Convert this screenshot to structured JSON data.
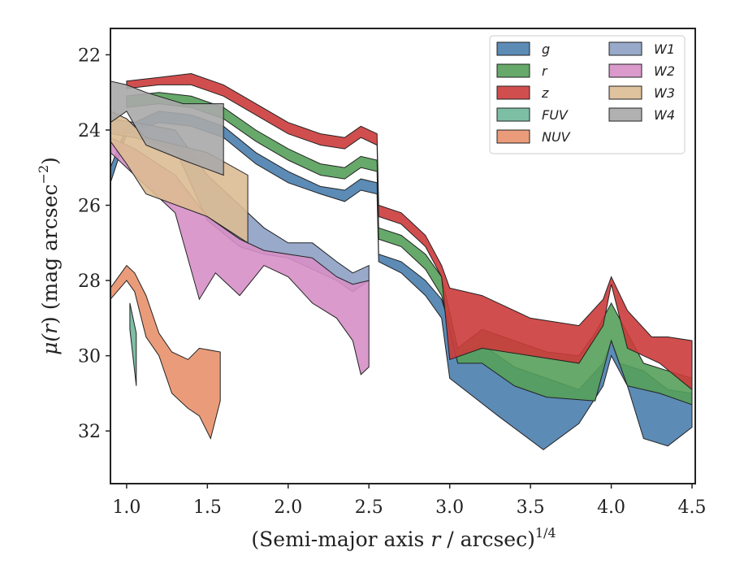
{
  "chart_data": {
    "type": "area",
    "xlabel_main": "(Semi-major axis ",
    "xlabel_var": "r",
    "xlabel_tail": " / arcsec)",
    "xlabel_exp": "1/4",
    "ylabel_main": "μ(",
    "ylabel_var": "r",
    "ylabel_tail": ") (mag arcsec",
    "ylabel_exp": "−2",
    "ylabel_close": ")",
    "xlim": [
      0.9,
      4.52
    ],
    "ylim": [
      33.4,
      21.3
    ],
    "x_ticks": [
      1.0,
      1.5,
      2.0,
      2.5,
      3.0,
      3.5,
      4.0,
      4.5
    ],
    "x_tick_labels": [
      "1.0",
      "1.5",
      "2.0",
      "2.5",
      "3.0",
      "3.5",
      "4.0",
      "4.5"
    ],
    "y_ticks": [
      22,
      24,
      26,
      28,
      30,
      32
    ],
    "y_tick_labels": [
      "22",
      "24",
      "26",
      "28",
      "30",
      "32"
    ],
    "grid": false,
    "legend_placement": "top-right",
    "legend_columns": 2,
    "series": [
      {
        "name": "g",
        "color": "#4a7eae",
        "upper": [
          [
            0.9,
            25.0
          ],
          [
            1.0,
            23.9
          ],
          [
            1.2,
            23.5
          ],
          [
            1.4,
            23.6
          ],
          [
            1.6,
            23.9
          ],
          [
            1.8,
            24.6
          ],
          [
            2.0,
            25.1
          ],
          [
            2.2,
            25.5
          ],
          [
            2.35,
            25.6
          ],
          [
            2.45,
            25.3
          ],
          [
            2.55,
            25.4
          ],
          [
            2.56,
            27.3
          ],
          [
            2.7,
            27.5
          ],
          [
            2.85,
            28.0
          ],
          [
            2.95,
            28.5
          ],
          [
            3.05,
            29.9
          ],
          [
            3.2,
            29.7
          ],
          [
            3.4,
            30.3
          ],
          [
            3.6,
            30.6
          ],
          [
            3.8,
            30.9
          ],
          [
            3.95,
            30.2
          ],
          [
            4.0,
            29.6
          ],
          [
            4.05,
            30.2
          ],
          [
            4.2,
            30.4
          ],
          [
            4.35,
            30.9
          ],
          [
            4.5,
            31.0
          ]
        ],
        "lower": [
          [
            0.9,
            25.4
          ],
          [
            1.0,
            24.1
          ],
          [
            1.2,
            23.8
          ],
          [
            1.4,
            23.9
          ],
          [
            1.6,
            24.2
          ],
          [
            1.8,
            24.9
          ],
          [
            2.0,
            25.4
          ],
          [
            2.2,
            25.7
          ],
          [
            2.35,
            25.9
          ],
          [
            2.45,
            25.6
          ],
          [
            2.55,
            25.7
          ],
          [
            2.56,
            27.5
          ],
          [
            2.7,
            27.8
          ],
          [
            2.85,
            28.4
          ],
          [
            2.95,
            29.0
          ],
          [
            3.0,
            30.6
          ],
          [
            3.3,
            31.6
          ],
          [
            3.58,
            32.5
          ],
          [
            3.8,
            31.8
          ],
          [
            3.95,
            30.8
          ],
          [
            4.0,
            30.0
          ],
          [
            4.1,
            30.8
          ],
          [
            4.2,
            32.2
          ],
          [
            4.35,
            32.4
          ],
          [
            4.5,
            31.9
          ]
        ]
      },
      {
        "name": "r",
        "color": "#55a05a",
        "upper": [
          [
            1.0,
            23.1
          ],
          [
            1.2,
            23.0
          ],
          [
            1.4,
            23.1
          ],
          [
            1.6,
            23.4
          ],
          [
            1.8,
            24.0
          ],
          [
            2.0,
            24.5
          ],
          [
            2.2,
            24.9
          ],
          [
            2.35,
            25.0
          ],
          [
            2.45,
            24.7
          ],
          [
            2.55,
            24.8
          ],
          [
            2.56,
            26.6
          ],
          [
            2.7,
            26.8
          ],
          [
            2.85,
            27.3
          ],
          [
            2.95,
            27.9
          ],
          [
            3.05,
            29.8
          ],
          [
            3.2,
            29.3
          ],
          [
            3.4,
            29.6
          ],
          [
            3.6,
            29.9
          ],
          [
            3.8,
            30.0
          ],
          [
            3.9,
            29.4
          ],
          [
            4.0,
            28.6
          ],
          [
            4.1,
            29.4
          ],
          [
            4.2,
            30.2
          ],
          [
            4.35,
            30.4
          ],
          [
            4.5,
            30.6
          ]
        ],
        "lower": [
          [
            1.0,
            23.4
          ],
          [
            1.2,
            23.3
          ],
          [
            1.4,
            23.4
          ],
          [
            1.6,
            23.7
          ],
          [
            1.8,
            24.3
          ],
          [
            2.0,
            24.8
          ],
          [
            2.2,
            25.2
          ],
          [
            2.35,
            25.3
          ],
          [
            2.45,
            25.0
          ],
          [
            2.55,
            25.1
          ],
          [
            2.56,
            26.9
          ],
          [
            2.7,
            27.1
          ],
          [
            2.85,
            27.7
          ],
          [
            2.95,
            28.4
          ],
          [
            3.05,
            30.2
          ],
          [
            3.2,
            30.2
          ],
          [
            3.4,
            30.8
          ],
          [
            3.6,
            31.1
          ],
          [
            3.9,
            31.2
          ],
          [
            4.0,
            29.6
          ],
          [
            4.1,
            30.8
          ],
          [
            4.3,
            31.0
          ],
          [
            4.5,
            31.3
          ]
        ]
      },
      {
        "name": "z",
        "color": "#cc3b3b",
        "upper": [
          [
            1.0,
            22.7
          ],
          [
            1.2,
            22.6
          ],
          [
            1.4,
            22.5
          ],
          [
            1.6,
            22.8
          ],
          [
            1.8,
            23.3
          ],
          [
            2.0,
            23.8
          ],
          [
            2.2,
            24.1
          ],
          [
            2.35,
            24.2
          ],
          [
            2.45,
            23.9
          ],
          [
            2.55,
            24.1
          ],
          [
            2.56,
            26.0
          ],
          [
            2.7,
            26.2
          ],
          [
            2.85,
            26.8
          ],
          [
            2.95,
            27.6
          ],
          [
            3.0,
            28.2
          ],
          [
            3.2,
            28.4
          ],
          [
            3.5,
            29.0
          ],
          [
            3.8,
            29.2
          ],
          [
            3.95,
            28.5
          ],
          [
            4.0,
            27.9
          ],
          [
            4.1,
            28.8
          ],
          [
            4.25,
            29.5
          ],
          [
            4.35,
            29.5
          ],
          [
            4.5,
            29.6
          ]
        ],
        "lower": [
          [
            1.0,
            22.9
          ],
          [
            1.2,
            22.8
          ],
          [
            1.4,
            22.8
          ],
          [
            1.6,
            23.1
          ],
          [
            1.8,
            23.6
          ],
          [
            2.0,
            24.1
          ],
          [
            2.2,
            24.4
          ],
          [
            2.35,
            24.5
          ],
          [
            2.45,
            24.2
          ],
          [
            2.55,
            24.4
          ],
          [
            2.56,
            26.3
          ],
          [
            2.7,
            26.5
          ],
          [
            2.85,
            27.1
          ],
          [
            2.95,
            27.9
          ],
          [
            3.0,
            30.1
          ],
          [
            3.2,
            29.8
          ],
          [
            3.5,
            30.0
          ],
          [
            3.8,
            30.2
          ],
          [
            3.95,
            29.2
          ],
          [
            4.0,
            28.1
          ],
          [
            4.1,
            29.8
          ],
          [
            4.3,
            30.2
          ],
          [
            4.5,
            30.9
          ]
        ]
      },
      {
        "name": "FUV",
        "color": "#6fb89a",
        "upper": [
          [
            1.02,
            28.6
          ],
          [
            1.06,
            29.4
          ]
        ],
        "lower": [
          [
            1.02,
            29.3
          ],
          [
            1.06,
            30.8
          ]
        ]
      },
      {
        "name": "NUV",
        "color": "#e8916b",
        "upper": [
          [
            0.9,
            28.2
          ],
          [
            1.0,
            27.6
          ],
          [
            1.05,
            27.8
          ],
          [
            1.12,
            28.4
          ],
          [
            1.2,
            29.4
          ],
          [
            1.28,
            29.9
          ],
          [
            1.38,
            30.1
          ],
          [
            1.45,
            29.8
          ],
          [
            1.58,
            29.9
          ]
        ],
        "lower": [
          [
            0.9,
            28.5
          ],
          [
            1.0,
            28.0
          ],
          [
            1.05,
            28.3
          ],
          [
            1.12,
            29.5
          ],
          [
            1.2,
            30.0
          ],
          [
            1.28,
            31.0
          ],
          [
            1.38,
            31.4
          ],
          [
            1.45,
            31.6
          ],
          [
            1.52,
            32.2
          ],
          [
            1.58,
            31.2
          ]
        ]
      },
      {
        "name": "W1",
        "color": "#8da0c4",
        "upper": [
          [
            0.9,
            23.7
          ],
          [
            1.05,
            23.8
          ],
          [
            1.3,
            24.0
          ],
          [
            1.5,
            25.2
          ],
          [
            1.7,
            26.0
          ],
          [
            1.85,
            26.6
          ],
          [
            2.0,
            27.0
          ],
          [
            2.15,
            27.0
          ],
          [
            2.3,
            27.5
          ],
          [
            2.4,
            27.8
          ],
          [
            2.5,
            27.6
          ]
        ],
        "lower": [
          [
            0.9,
            24.1
          ],
          [
            1.05,
            24.2
          ],
          [
            1.3,
            24.5
          ],
          [
            1.5,
            26.4
          ],
          [
            1.7,
            27.1
          ],
          [
            1.85,
            27.3
          ],
          [
            2.0,
            27.4
          ],
          [
            2.15,
            27.7
          ],
          [
            2.3,
            28.0
          ],
          [
            2.4,
            28.3
          ],
          [
            2.5,
            28.0
          ]
        ]
      },
      {
        "name": "W2",
        "color": "#d68fc6",
        "upper": [
          [
            0.9,
            24.2
          ],
          [
            1.05,
            24.5
          ],
          [
            1.3,
            25.2
          ],
          [
            1.5,
            26.3
          ],
          [
            1.7,
            26.9
          ],
          [
            1.85,
            27.2
          ],
          [
            2.0,
            27.3
          ],
          [
            2.15,
            27.4
          ],
          [
            2.3,
            27.9
          ],
          [
            2.4,
            28.1
          ],
          [
            2.5,
            28.0
          ]
        ],
        "lower": [
          [
            0.9,
            24.6
          ],
          [
            1.05,
            25.2
          ],
          [
            1.3,
            26.2
          ],
          [
            1.45,
            28.5
          ],
          [
            1.55,
            27.8
          ],
          [
            1.7,
            28.4
          ],
          [
            1.85,
            27.6
          ],
          [
            2.0,
            27.9
          ],
          [
            2.15,
            28.6
          ],
          [
            2.3,
            29.0
          ],
          [
            2.4,
            29.6
          ],
          [
            2.45,
            30.5
          ],
          [
            2.5,
            30.3
          ]
        ]
      },
      {
        "name": "W3",
        "color": "#dcbb93",
        "upper": [
          [
            0.9,
            23.5
          ],
          [
            1.0,
            23.7
          ],
          [
            1.12,
            24.2
          ],
          [
            1.5,
            24.6
          ],
          [
            1.75,
            25.2
          ]
        ],
        "lower": [
          [
            0.9,
            24.3
          ],
          [
            1.0,
            24.9
          ],
          [
            1.12,
            25.7
          ],
          [
            1.5,
            26.3
          ],
          [
            1.75,
            27.0
          ]
        ]
      },
      {
        "name": "W4",
        "color": "#a9a9a9",
        "upper": [
          [
            0.9,
            22.7
          ],
          [
            1.0,
            22.8
          ],
          [
            1.12,
            23.0
          ],
          [
            1.35,
            23.3
          ],
          [
            1.6,
            23.3
          ]
        ],
        "lower": [
          [
            0.9,
            23.8
          ],
          [
            1.0,
            23.5
          ],
          [
            1.12,
            24.4
          ],
          [
            1.35,
            24.8
          ],
          [
            1.6,
            25.2
          ]
        ]
      }
    ]
  }
}
